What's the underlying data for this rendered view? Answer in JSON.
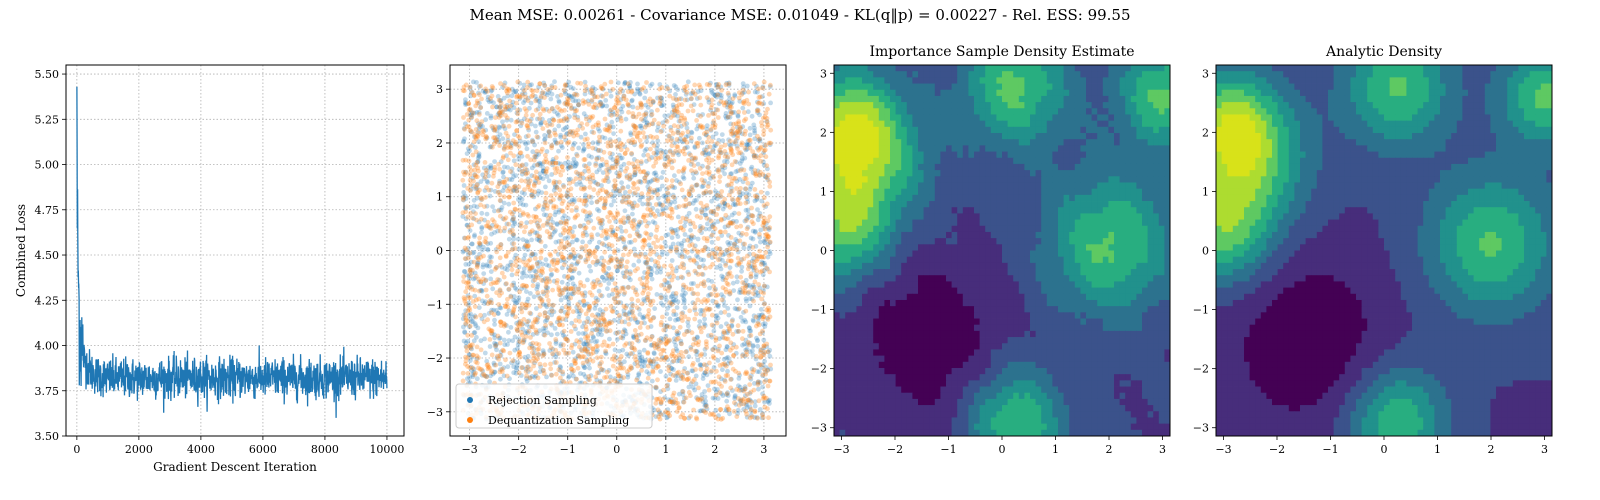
{
  "figure": {
    "suptitle": "Mean MSE: 0.00261 - Covariance MSE: 0.01049 - KL(q‖p) = 0.00227 - Rel. ESS: 99.55"
  },
  "chart_data": [
    {
      "type": "line",
      "title": "",
      "xlabel": "Gradient Descent Iteration",
      "ylabel": "Combined Loss",
      "xlim": [
        -350,
        10550
      ],
      "ylim": [
        3.5,
        5.55
      ],
      "xticks": [
        0,
        2000,
        4000,
        6000,
        8000,
        10000
      ],
      "xticklabels": [
        "0",
        "2000",
        "4000",
        "6000",
        "8000",
        "10000"
      ],
      "yticks": [
        3.5,
        3.75,
        4.0,
        4.25,
        4.5,
        4.75,
        5.0,
        5.25,
        5.5
      ],
      "yticklabels": [
        "3.50",
        "3.75",
        "4.00",
        "4.25",
        "4.50",
        "4.75",
        "5.00",
        "5.25",
        "5.50"
      ],
      "grid": true,
      "series": [
        {
          "color": "#1f77b4",
          "x": [
            0,
            10,
            25,
            50,
            80,
            120,
            170,
            230,
            300,
            400,
            500,
            600,
            800,
            1000,
            2000,
            3000,
            4000,
            5000,
            6000,
            7000,
            8000,
            9000,
            10000
          ],
          "y": [
            5.43,
            4.8,
            4.6,
            4.35,
            4.15,
            4.05,
            3.98,
            3.93,
            3.9,
            3.87,
            3.85,
            3.84,
            3.83,
            3.82,
            3.82,
            3.82,
            3.82,
            3.82,
            3.82,
            3.82,
            3.82,
            3.82,
            3.82
          ],
          "noise_band": [
            3.6,
            4.01
          ]
        }
      ]
    },
    {
      "type": "scatter",
      "title": "",
      "xlim": [
        -3.4,
        3.45
      ],
      "ylim": [
        -3.45,
        3.45
      ],
      "xticks": [
        -3,
        -2,
        -1,
        0,
        1,
        2,
        3
      ],
      "xticklabels": [
        "−3",
        "−2",
        "−1",
        "0",
        "1",
        "2",
        "3"
      ],
      "yticks": [
        -3,
        -2,
        -1,
        0,
        1,
        2,
        3
      ],
      "yticklabels": [
        "−3",
        "−2",
        "−1",
        "0",
        "1",
        "2",
        "3"
      ],
      "grid": true,
      "legend_position": "lower-left",
      "series": [
        {
          "name": "Rejection Sampling",
          "color": "#1f77b4",
          "domain": [
            -3.14,
            3.14
          ]
        },
        {
          "name": "Dequantization Sampling",
          "color": "#ff7f0e",
          "domain": [
            -3.14,
            3.14
          ]
        }
      ]
    },
    {
      "type": "heatmap",
      "title": "Importance Sample Density Estimate",
      "xlim": [
        -3.14,
        3.14
      ],
      "ylim": [
        -3.14,
        3.14
      ],
      "xticks": [
        -3,
        -2,
        -1,
        0,
        1,
        2,
        3
      ],
      "xticklabels": [
        "−3",
        "−2",
        "−1",
        "0",
        "1",
        "2",
        "3"
      ],
      "yticks": [
        -3,
        -2,
        -1,
        0,
        1,
        2,
        3
      ],
      "yticklabels": [
        "−3",
        "−2",
        "−1",
        "0",
        "1",
        "2",
        "3"
      ],
      "colormap": [
        "#440154",
        "#472d7b",
        "#3b528b",
        "#2c728e",
        "#21918c",
        "#28ae80",
        "#5ec962",
        "#addc30",
        "#d8e219"
      ]
    },
    {
      "type": "heatmap",
      "title": "Analytic Density",
      "xlim": [
        -3.14,
        3.14
      ],
      "ylim": [
        -3.14,
        3.14
      ],
      "xticks": [
        -3,
        -2,
        -1,
        0,
        1,
        2,
        3
      ],
      "xticklabels": [
        "−3",
        "−2",
        "−1",
        "0",
        "1",
        "2",
        "3"
      ],
      "yticks": [
        -3,
        -2,
        -1,
        0,
        1,
        2,
        3
      ],
      "yticklabels": [
        "−3",
        "−2",
        "−1",
        "0",
        "1",
        "2",
        "3"
      ],
      "colormap": [
        "#440154",
        "#472d7b",
        "#3b528b",
        "#2c728e",
        "#21918c",
        "#28ae80",
        "#5ec962",
        "#addc30",
        "#d8e219"
      ]
    }
  ]
}
